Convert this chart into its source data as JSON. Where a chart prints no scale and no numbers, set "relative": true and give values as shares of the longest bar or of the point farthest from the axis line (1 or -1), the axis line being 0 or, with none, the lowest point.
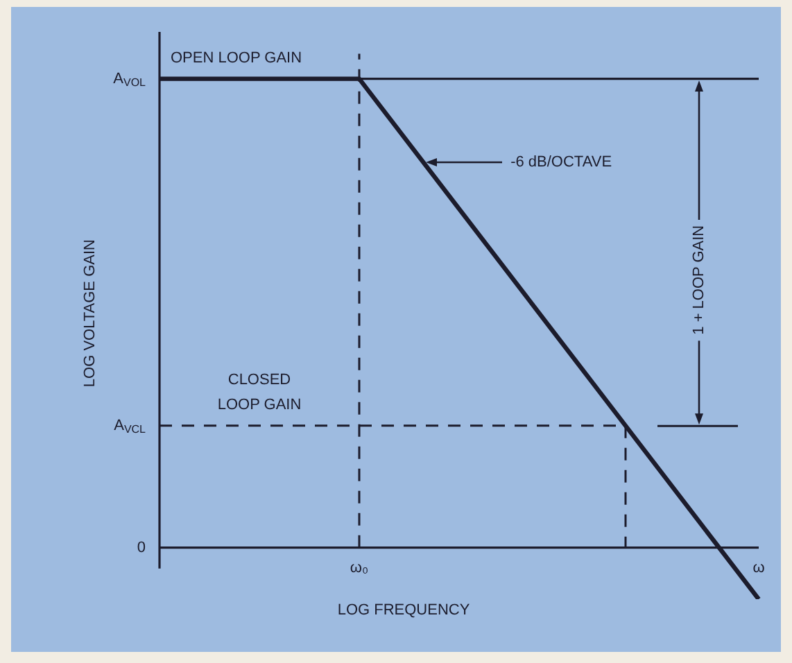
{
  "chart_data": {
    "type": "line",
    "relative": true,
    "xlabel": "LOG FREQUENCY",
    "ylabel": "LOG VOLTAGE GAIN",
    "categories": [
      null,
      null,
      null,
      "ω₀",
      null,
      null,
      null,
      null,
      null,
      "ω"
    ],
    "series": [
      {
        "color": "#1c1c2c",
        "values": [
          1,
          null,
          null,
          1,
          null,
          null,
          null,
          0.26,
          null,
          -0.11
        ]
      }
    ],
    "ref_lines": [
      {
        "axis": "y",
        "value": 1,
        "label": "A$_{VOL}$",
        "line_style": "solid"
      },
      {
        "axis": "y",
        "value": 0.26,
        "label": "A$_{VCL}$",
        "line_style": "dashed"
      },
      {
        "axis": "x",
        "value": "ω₀",
        "line_style": "dashed"
      }
    ],
    "annotations": [
      "OPEN LOOP GAIN",
      "-6 dB/OCTAVE",
      "CLOSED LOOP GAIN",
      "1 + LOOP GAIN",
      "0"
    ],
    "legend": false,
    "marker": "none",
    "line_style": "solid"
  }
}
